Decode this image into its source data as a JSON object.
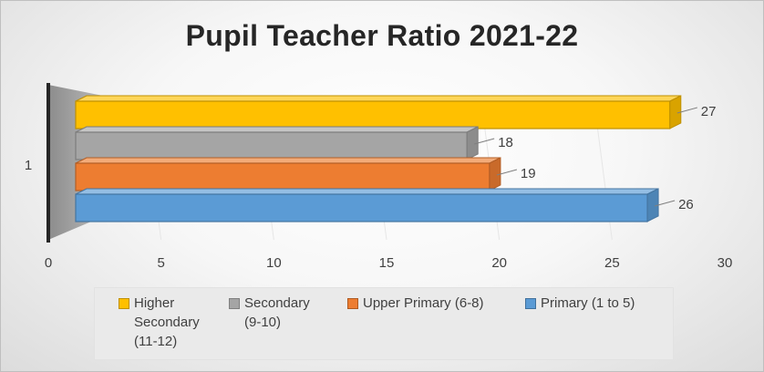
{
  "chart_data": {
    "type": "bar",
    "orientation": "horizontal",
    "style": "3d-clustered",
    "title": "Pupil Teacher Ratio 2021-22",
    "categories": [
      "1"
    ],
    "xlim": [
      0,
      30
    ],
    "x_ticks": [
      "0",
      "5",
      "10",
      "15",
      "20",
      "25",
      "30"
    ],
    "grid": false,
    "legend_position": "bottom",
    "series": [
      {
        "name": "Higher Secondary (11-12)",
        "values": [
          27
        ],
        "color": "#ffc000"
      },
      {
        "name": "Secondary (9-10)",
        "values": [
          18
        ],
        "color": "#a5a5a5"
      },
      {
        "name": "Upper Primary (6-8)",
        "values": [
          19
        ],
        "color": "#ed7d31"
      },
      {
        "name": "Primary (1 to 5)",
        "values": [
          26
        ],
        "color": "#5b9bd5"
      }
    ]
  },
  "legend": {
    "items": [
      {
        "label_line1": "Higher",
        "label_line2": "Secondary",
        "label_line3": "(11-12)"
      },
      {
        "label_line1": "Secondary",
        "label_line2": "(9-10)",
        "label_line3": ""
      },
      {
        "label_line1": "Upper Primary (6-8)",
        "label_line2": "",
        "label_line3": ""
      },
      {
        "label_line1": "Primary (1 to 5)",
        "label_line2": "",
        "label_line3": ""
      }
    ]
  }
}
